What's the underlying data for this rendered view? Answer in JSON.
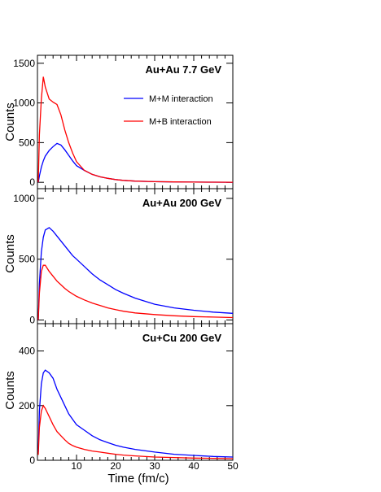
{
  "colors": {
    "mm": "#0000ff",
    "mb": "#ff0000",
    "axis": "#000000"
  },
  "chart_data": {
    "type": "line",
    "xlabel": "Time (fm/c)",
    "ylabel": "Counts",
    "xlim": [
      0,
      50
    ],
    "x_ticks": [
      10,
      20,
      30,
      40,
      50
    ],
    "x": [
      0.2,
      0.5,
      1,
      1.5,
      2,
      3,
      4,
      5,
      6,
      7,
      8,
      9,
      10,
      12,
      14,
      16,
      18,
      20,
      22,
      25,
      30,
      35,
      40,
      45,
      50
    ],
    "series_names": [
      "M+M interaction",
      "M+B interaction"
    ],
    "panels": [
      {
        "label": "Au+Au 7.7 GeV",
        "ylim": [
          -80,
          1600
        ],
        "y_ticks": [
          0,
          500,
          1000,
          1500
        ],
        "legend_position": "top-right",
        "series": [
          {
            "name": "M+M interaction",
            "color": "#0000ff",
            "values": [
              0,
              80,
              190,
              270,
              330,
              400,
              450,
              490,
              470,
              410,
              340,
              270,
              210,
              150,
              100,
              70,
              50,
              35,
              25,
              15,
              8,
              5,
              3,
              2,
              1
            ]
          },
          {
            "name": "M+B interaction",
            "color": "#ff0000",
            "values": [
              0,
              600,
              1050,
              1330,
              1200,
              1050,
              1010,
              980,
              850,
              660,
              500,
              370,
              260,
              150,
              100,
              70,
              50,
              35,
              25,
              15,
              8,
              5,
              3,
              2,
              1
            ]
          }
        ]
      },
      {
        "label": "Au+Au 200 GeV",
        "ylim": [
          -30,
          1080
        ],
        "y_ticks": [
          0,
          500,
          1000
        ],
        "series": [
          {
            "name": "M+M interaction",
            "color": "#0000ff",
            "values": [
              0,
              300,
              560,
              680,
              740,
              760,
              730,
              690,
              650,
              610,
              570,
              530,
              500,
              440,
              380,
              330,
              290,
              250,
              220,
              180,
              130,
              100,
              80,
              65,
              55
            ]
          },
          {
            "name": "M+B interaction",
            "color": "#ff0000",
            "values": [
              0,
              220,
              400,
              450,
              450,
              400,
              360,
              320,
              290,
              260,
              235,
              215,
              195,
              165,
              140,
              120,
              100,
              85,
              72,
              58,
              45,
              35,
              28,
              24,
              20
            ]
          }
        ]
      },
      {
        "label": "Cu+Cu 200 GeV",
        "ylim": [
          0,
          500
        ],
        "y_ticks": [
          0,
          200,
          400
        ],
        "series": [
          {
            "name": "M+M interaction",
            "color": "#0000ff",
            "values": [
              30,
              180,
              280,
              320,
              330,
              320,
              300,
              260,
              230,
              200,
              170,
              150,
              130,
              110,
              90,
              75,
              65,
              55,
              48,
              40,
              30,
              22,
              18,
              14,
              12
            ]
          },
          {
            "name": "M+B interaction",
            "color": "#ff0000",
            "values": [
              20,
              120,
              180,
              200,
              190,
              160,
              130,
              105,
              90,
              75,
              62,
              54,
              48,
              40,
              34,
              30,
              26,
              22,
              19,
              16,
              12,
              10,
              8,
              7,
              6
            ]
          }
        ]
      }
    ]
  }
}
